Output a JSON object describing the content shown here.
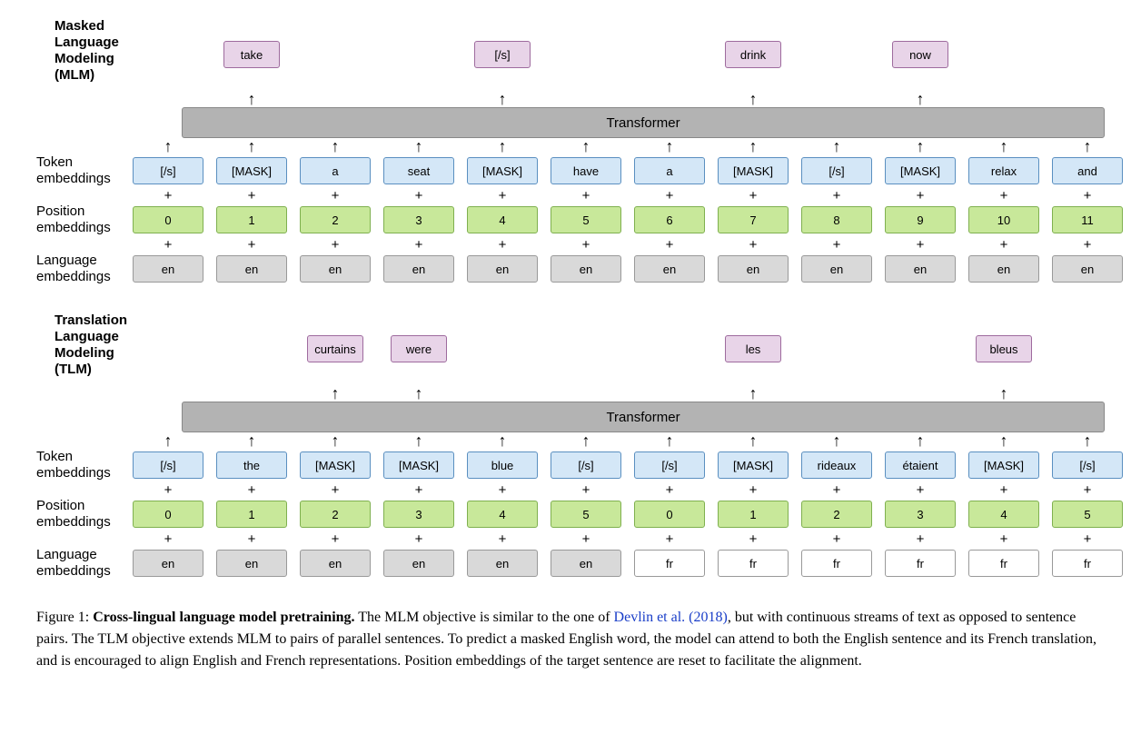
{
  "colors": {
    "output_fill": "#e8d4e8",
    "output_border": "#9e6b9e",
    "token_fill": "#d4e7f7",
    "token_border": "#5a8fc0",
    "position_fill": "#c8e89a",
    "position_border": "#7fb04f",
    "lang_en_fill": "#d9d9d9",
    "lang_en_border": "#999999",
    "lang_fr_fill": "#ffffff",
    "lang_fr_border": "#999999",
    "transformer_fill": "#b3b3b3",
    "transformer_border": "#888888"
  },
  "mlm": {
    "title": "Masked Language\nModeling (MLM)",
    "outputs": [
      "",
      "take",
      "",
      "",
      "[/s]",
      "",
      "",
      "drink",
      "",
      "now",
      "",
      ""
    ],
    "transformer": "Transformer",
    "token_label": "Token\nembeddings",
    "tokens": [
      "[/s]",
      "[MASK]",
      "a",
      "seat",
      "[MASK]",
      "have",
      "a",
      "[MASK]",
      "[/s]",
      "[MASK]",
      "relax",
      "and"
    ],
    "position_label": "Position\nembeddings",
    "positions": [
      "0",
      "1",
      "2",
      "3",
      "4",
      "5",
      "6",
      "7",
      "8",
      "9",
      "10",
      "11"
    ],
    "lang_label": "Language\nembeddings",
    "langs": [
      "en",
      "en",
      "en",
      "en",
      "en",
      "en",
      "en",
      "en",
      "en",
      "en",
      "en",
      "en"
    ]
  },
  "tlm": {
    "title": "Translation Language\nModeling (TLM)",
    "outputs": [
      "",
      "",
      "curtains",
      "were",
      "",
      "",
      "",
      "les",
      "",
      "",
      "bleus",
      ""
    ],
    "transformer": "Transformer",
    "token_label": "Token\nembeddings",
    "tokens": [
      "[/s]",
      "the",
      "[MASK]",
      "[MASK]",
      "blue",
      "[/s]",
      "[/s]",
      "[MASK]",
      "rideaux",
      "étaient",
      "[MASK]",
      "[/s]"
    ],
    "position_label": "Position\nembeddings",
    "positions": [
      "0",
      "1",
      "2",
      "3",
      "4",
      "5",
      "0",
      "1",
      "2",
      "3",
      "4",
      "5"
    ],
    "lang_label": "Language\nembeddings",
    "langs": [
      "en",
      "en",
      "en",
      "en",
      "en",
      "en",
      "fr",
      "fr",
      "fr",
      "fr",
      "fr",
      "fr"
    ]
  },
  "caption": {
    "fig": "Figure 1: ",
    "bold": "Cross-lingual language model pretraining.",
    "body1": "  The MLM objective is similar to the one of ",
    "link": "Devlin et al. (2018)",
    "body2": ", but with continuous streams of text as opposed to sentence pairs. The TLM objective extends MLM to pairs of parallel sentences. To predict a masked English word, the model can attend to both the English sentence and its French translation, and is encouraged to align English and French representations. Position embeddings of the target sentence are reset to facilitate the alignment."
  }
}
